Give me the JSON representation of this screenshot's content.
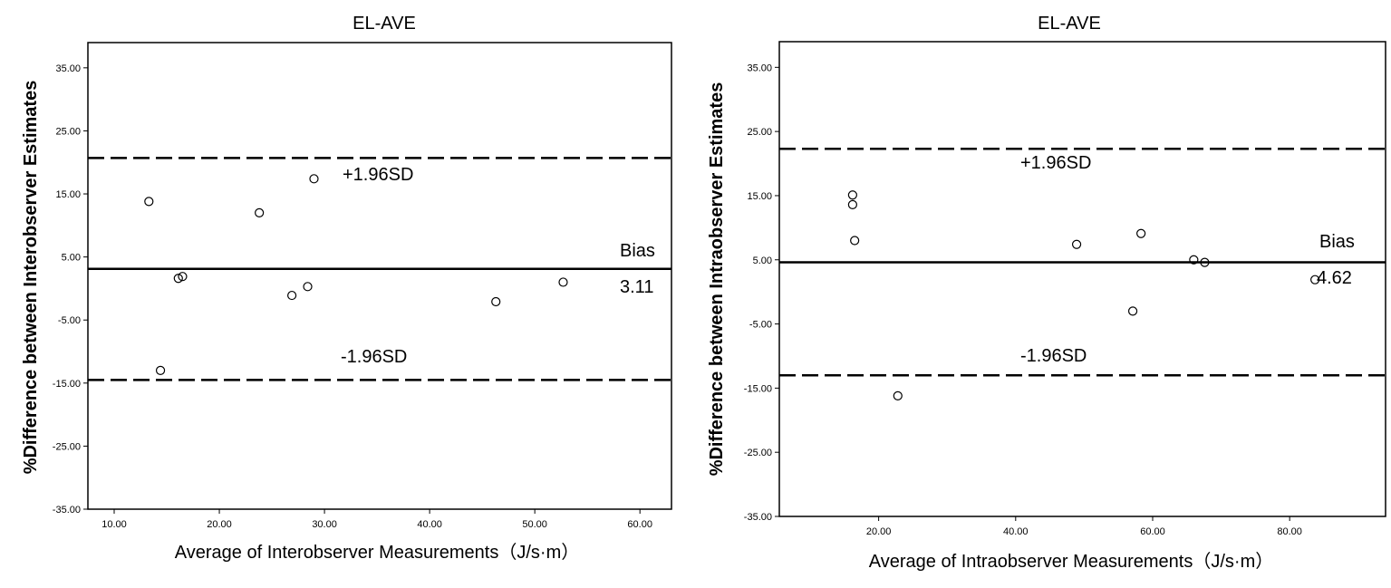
{
  "chart_data": [
    {
      "type": "scatter",
      "title": "EL-AVE",
      "xlabel": "Average of Interobserver Measurements（J/s·m）",
      "ylabel": "%Difference between Interobserver Estimates",
      "xlim": [
        7.5,
        63
      ],
      "ylim": [
        -35,
        39
      ],
      "x_ticks": [
        "10.00",
        "20.00",
        "30.00",
        "40.00",
        "50.00",
        "60.00"
      ],
      "y_ticks": [
        "35.00",
        "25.00",
        "15.00",
        "5.00",
        "-5.00",
        "-15.00",
        "-25.00",
        "-35.00"
      ],
      "points": [
        {
          "x": 13.3,
          "y": 13.8
        },
        {
          "x": 29.0,
          "y": 17.4
        },
        {
          "x": 23.8,
          "y": 12.0
        },
        {
          "x": 16.1,
          "y": 1.6
        },
        {
          "x": 16.5,
          "y": 1.9
        },
        {
          "x": 26.9,
          "y": -1.1
        },
        {
          "x": 28.4,
          "y": 0.3
        },
        {
          "x": 46.3,
          "y": -2.1
        },
        {
          "x": 52.7,
          "y": 1.0
        },
        {
          "x": 14.4,
          "y": -13.0
        }
      ],
      "lines": [
        {
          "name": "upper",
          "y": 20.7,
          "style": "dashed"
        },
        {
          "name": "bias",
          "y": 3.11,
          "style": "solid"
        },
        {
          "name": "lower",
          "y": -14.5,
          "style": "dashed"
        }
      ],
      "annotations": {
        "upper_label": "+1.96SD",
        "lower_label": "-1.96SD",
        "bias_label": "Bias",
        "bias_value": "3.11"
      },
      "grid": false
    },
    {
      "type": "scatter",
      "title": "EL-AVE",
      "xlabel": "Average of Intraobserver Measurements（J/s·m）",
      "ylabel": "%Difference between Intraobserver Estimates",
      "xlim": [
        5.5,
        94
      ],
      "ylim": [
        -35,
        39
      ],
      "x_ticks": [
        "20.00",
        "40.00",
        "60.00",
        "80.00"
      ],
      "y_ticks": [
        "35.00",
        "25.00",
        "15.00",
        "5.00",
        "-5.00",
        "-15.00",
        "-25.00",
        "-35.00"
      ],
      "points": [
        {
          "x": 16.2,
          "y": 15.1
        },
        {
          "x": 16.2,
          "y": 13.6
        },
        {
          "x": 16.5,
          "y": 8.0
        },
        {
          "x": 22.8,
          "y": -16.2
        },
        {
          "x": 48.9,
          "y": 7.4
        },
        {
          "x": 58.3,
          "y": 9.1
        },
        {
          "x": 57.1,
          "y": -3.0
        },
        {
          "x": 66.0,
          "y": 5.0
        },
        {
          "x": 67.6,
          "y": 4.6
        },
        {
          "x": 83.7,
          "y": 1.9
        }
      ],
      "lines": [
        {
          "name": "upper",
          "y": 22.3,
          "style": "dashed"
        },
        {
          "name": "bias",
          "y": 4.62,
          "style": "solid"
        },
        {
          "name": "lower",
          "y": -13.0,
          "style": "dashed"
        }
      ],
      "annotations": {
        "upper_label": "+1.96SD",
        "lower_label": "-1.96SD",
        "bias_label": "Bias",
        "bias_value": "4.62"
      },
      "grid": false
    }
  ]
}
